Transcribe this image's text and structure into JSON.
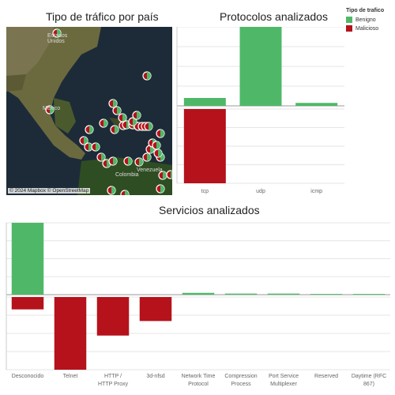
{
  "titles": {
    "map": "Tipo de tráfico por país",
    "protocols": "Protocolos analizados",
    "services": "Servicios analizados"
  },
  "legend": {
    "title": "Tipo de trafico",
    "items": [
      {
        "label": "Benigno",
        "color": "#4fb868"
      },
      {
        "label": "Malicioso",
        "color": "#b5121b"
      }
    ]
  },
  "map": {
    "labels": {
      "estados_unidos": "Estados Unidos",
      "mexico": "Mexico",
      "venezuela": "Venezuela",
      "colombia": "Colombia"
    },
    "credit": "© 2024 Mapbox © OpenStreetMap"
  },
  "chart_data": [
    {
      "type": "bar",
      "title": "Protocolos analizados",
      "categories": [
        "tcp",
        "udp",
        "icmp"
      ],
      "series": [
        {
          "name": "Benigno",
          "values": [
            8,
            80,
            3
          ]
        },
        {
          "name": "Malicioso",
          "values": [
            100,
            0,
            0
          ]
        }
      ],
      "colors": {
        "Benigno": "#4fb868",
        "Malicioso": "#b5121b"
      },
      "grid": true
    },
    {
      "type": "bar",
      "title": "Servicios analizados",
      "categories": [
        "Desconocido",
        "Telnet",
        "HTTP / HTTP Proxy",
        "3d-nfsd",
        "Network Time Protocol",
        "Compression Process",
        "Port Service Multiplexer",
        "Reserved",
        "Daytime (RFC 867)"
      ],
      "series": [
        {
          "name": "Benigno",
          "values": [
            100,
            0,
            0,
            0,
            2.5,
            1.5,
            1.5,
            1,
            1
          ]
        },
        {
          "name": "Malicioso",
          "values": [
            17,
            100,
            53,
            33,
            0,
            0,
            0,
            0,
            0
          ]
        }
      ],
      "colors": {
        "Benigno": "#4fb868",
        "Malicioso": "#b5121b"
      },
      "grid": true
    }
  ]
}
